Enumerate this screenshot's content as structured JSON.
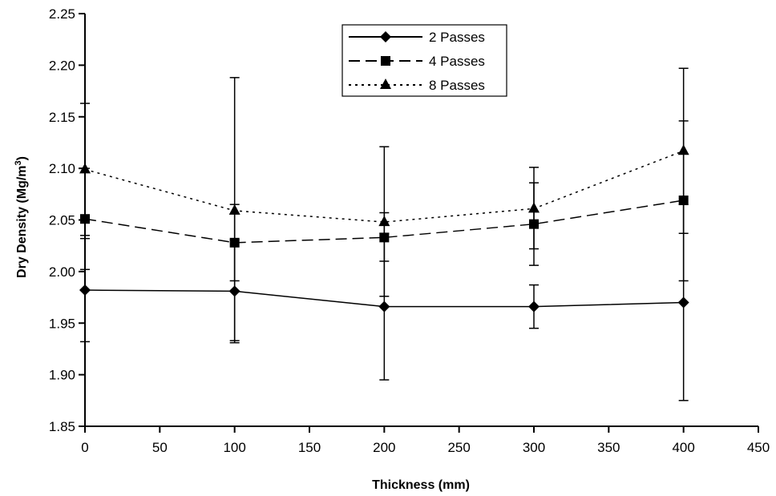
{
  "chart_data": {
    "type": "line",
    "title": "",
    "xlabel": "Thickness (mm)",
    "ylabel": {
      "main": "Dry Density (Mg/m",
      "superscript": "3",
      "close": ")"
    },
    "xlim": [
      0,
      450
    ],
    "ylim": [
      1.85,
      2.25
    ],
    "xticks": [
      "0",
      "50",
      "100",
      "150",
      "200",
      "250",
      "300",
      "350",
      "400",
      "450"
    ],
    "xtick_values": [
      0,
      50,
      100,
      150,
      200,
      250,
      300,
      350,
      400,
      450
    ],
    "yticks": [
      "1.85",
      "1.90",
      "1.95",
      "2.00",
      "2.05",
      "2.10",
      "2.15",
      "2.20",
      "2.25"
    ],
    "ytick_values": [
      1.85,
      1.9,
      1.95,
      2.0,
      2.05,
      2.1,
      2.15,
      2.2,
      2.25
    ],
    "grid": false,
    "legend_position": "top-center",
    "series": [
      {
        "name": "2 Passes",
        "marker": "diamond",
        "line_style": "solid",
        "color": "#000000",
        "x": [
          0,
          100,
          200,
          300,
          400
        ],
        "y": [
          1.982,
          1.981,
          1.966,
          1.966,
          1.97
        ],
        "err_low": [
          1.932,
          1.931,
          1.895,
          1.945,
          1.875
        ],
        "err_high": [
          2.032,
          2.031,
          2.037,
          1.987,
          2.065
        ]
      },
      {
        "name": "4 Passes",
        "marker": "square",
        "line_style": "dashed",
        "color": "#000000",
        "x": [
          0,
          100,
          200,
          300,
          400
        ],
        "y": [
          2.051,
          2.028,
          2.033,
          2.046,
          2.069
        ],
        "err_low": [
          2.002,
          1.933,
          1.976,
          2.006,
          1.991
        ],
        "err_high": [
          2.1,
          2.065,
          2.057,
          2.086,
          2.146
        ]
      },
      {
        "name": "8 Passes",
        "marker": "triangle",
        "line_style": "dotted",
        "color": "#000000",
        "x": [
          0,
          100,
          200,
          300,
          400
        ],
        "y": [
          2.099,
          2.059,
          2.048,
          2.061,
          2.117
        ],
        "err_low": [
          2.035,
          1.991,
          2.01,
          2.022,
          2.037
        ],
        "err_high": [
          2.163,
          2.188,
          2.121,
          2.101,
          2.197
        ]
      }
    ]
  }
}
